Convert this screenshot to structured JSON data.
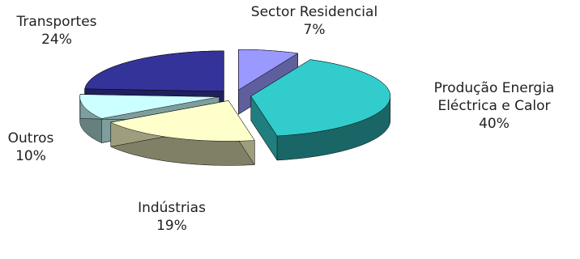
{
  "chart_data": {
    "type": "pie3d",
    "categories": [
      "Sector Residencial",
      "Produção Energia Eléctrica e Calor",
      "Indústrias",
      "Outros",
      "Transportes"
    ],
    "values": [
      7,
      40,
      19,
      10,
      24
    ],
    "value_labels": [
      "7%",
      "40%",
      "19%",
      "10%",
      "24%"
    ],
    "colors": [
      "#9999ff",
      "#33cccc",
      "#ffffcc",
      "#ccffff",
      "#333399"
    ]
  }
}
